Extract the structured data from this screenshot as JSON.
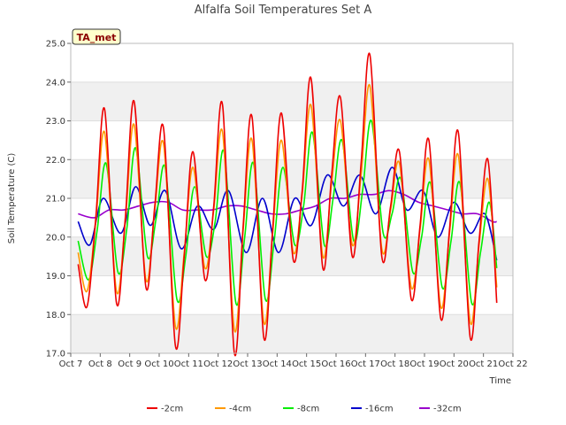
{
  "chart_data": {
    "type": "line",
    "title": "Alfalfa Soil Temperatures Set A",
    "badge": "TA_met",
    "xlabel": "Time",
    "ylabel": "Soil Temperature (C)",
    "ylim": [
      17.0,
      25.0
    ],
    "xlim": [
      7.0,
      22.0
    ],
    "y_ticks": [
      "17.0",
      "18.0",
      "19.0",
      "20.0",
      "21.0",
      "22.0",
      "23.0",
      "24.0",
      "25.0"
    ],
    "x_ticks": [
      "Oct 7",
      "Oct 8",
      "Oct 9",
      "Oct 10",
      "Oct 11",
      "Oct 12",
      "Oct 13",
      "Oct 14",
      "Oct 15",
      "Oct 16",
      "Oct 17",
      "Oct 18",
      "Oct 19",
      "Oct 20",
      "Oct 21",
      "Oct 22"
    ],
    "x_tick_values": [
      7,
      8,
      9,
      10,
      11,
      12,
      13,
      14,
      15,
      16,
      17,
      18,
      19,
      20,
      21,
      22
    ],
    "grid": true,
    "legend_placement": "bottom",
    "series": [
      {
        "name": "-2cm",
        "color": "#ee0000",
        "x": [
          7.25,
          7.55,
          7.85,
          8.15,
          8.55,
          8.85,
          9.15,
          9.55,
          9.85,
          10.15,
          10.55,
          10.85,
          11.15,
          11.55,
          11.85,
          12.15,
          12.55,
          12.85,
          13.15,
          13.55,
          13.85,
          14.15,
          14.55,
          14.85,
          15.15,
          15.55,
          15.85,
          16.15,
          16.55,
          16.85,
          17.15,
          17.55,
          17.85,
          18.15,
          18.55,
          18.85,
          19.15,
          19.55,
          19.85,
          20.15,
          20.55,
          20.85,
          21.15,
          21.45
        ],
        "y": [
          19.3,
          18.2,
          20.5,
          23.3,
          18.3,
          20.5,
          23.5,
          18.7,
          20.8,
          22.8,
          17.2,
          19.5,
          22.2,
          18.9,
          20.8,
          23.4,
          17.0,
          20.3,
          23.1,
          17.4,
          20.2,
          23.2,
          19.4,
          21.2,
          24.1,
          19.2,
          21.6,
          23.6,
          19.5,
          21.9,
          24.7,
          19.5,
          20.8,
          22.2,
          18.4,
          20.3,
          22.5,
          17.9,
          20.2,
          22.7,
          17.4,
          19.9,
          22.0,
          18.3
        ]
      },
      {
        "name": "-4cm",
        "color": "#ff9900",
        "x": [
          7.25,
          7.55,
          7.85,
          8.15,
          8.55,
          8.85,
          9.15,
          9.55,
          9.85,
          10.15,
          10.55,
          10.85,
          11.15,
          11.55,
          11.85,
          12.15,
          12.55,
          12.85,
          13.15,
          13.55,
          13.85,
          14.15,
          14.55,
          14.85,
          15.15,
          15.55,
          15.85,
          16.15,
          16.55,
          16.85,
          17.15,
          17.55,
          17.85,
          18.15,
          18.55,
          18.85,
          19.15,
          19.55,
          19.85,
          20.15,
          20.55,
          20.85,
          21.15,
          21.45
        ],
        "y": [
          19.6,
          18.6,
          20.4,
          22.7,
          18.6,
          20.4,
          22.9,
          18.9,
          20.7,
          22.4,
          17.7,
          19.6,
          21.8,
          19.2,
          20.7,
          22.7,
          17.6,
          20.2,
          22.5,
          17.8,
          20.1,
          22.5,
          19.6,
          21.1,
          23.4,
          19.5,
          21.4,
          23.0,
          19.8,
          21.6,
          23.9,
          19.7,
          20.7,
          21.9,
          18.7,
          20.2,
          22.0,
          18.2,
          20.1,
          22.1,
          17.8,
          19.8,
          21.5,
          18.7
        ]
      },
      {
        "name": "-8cm",
        "color": "#00ee00",
        "x": [
          7.25,
          7.6,
          7.9,
          8.2,
          8.6,
          8.9,
          9.2,
          9.6,
          9.9,
          10.2,
          10.6,
          10.9,
          11.2,
          11.6,
          11.9,
          12.2,
          12.6,
          12.9,
          13.2,
          13.6,
          13.9,
          14.2,
          14.6,
          14.9,
          15.2,
          15.6,
          15.9,
          16.2,
          16.6,
          16.9,
          17.2,
          17.6,
          17.9,
          18.2,
          18.6,
          18.9,
          19.2,
          19.6,
          19.9,
          20.2,
          20.6,
          20.9,
          21.2,
          21.45
        ],
        "y": [
          19.9,
          18.9,
          20.2,
          21.9,
          19.1,
          20.2,
          22.3,
          19.5,
          20.5,
          21.8,
          18.4,
          19.5,
          21.3,
          19.5,
          20.4,
          22.2,
          18.3,
          20.0,
          21.9,
          18.4,
          19.9,
          21.8,
          19.8,
          20.8,
          22.7,
          19.8,
          21.0,
          22.5,
          19.9,
          21.2,
          23.0,
          20.1,
          20.6,
          21.5,
          19.1,
          20.0,
          21.4,
          18.7,
          19.9,
          21.4,
          18.3,
          19.6,
          20.9,
          19.2
        ]
      },
      {
        "name": "-16cm",
        "color": "#0000cc",
        "x": [
          7.25,
          7.65,
          8.1,
          8.7,
          9.2,
          9.7,
          10.2,
          10.75,
          11.3,
          11.85,
          12.35,
          12.95,
          13.5,
          14.05,
          14.6,
          15.15,
          15.7,
          16.25,
          16.8,
          17.35,
          17.9,
          18.4,
          18.95,
          19.45,
          20.0,
          20.55,
          21.05,
          21.45
        ],
        "y": [
          20.4,
          19.8,
          21.0,
          20.1,
          21.3,
          20.3,
          21.2,
          19.7,
          20.8,
          20.2,
          21.2,
          19.6,
          21.0,
          19.6,
          21.0,
          20.3,
          21.6,
          20.8,
          21.6,
          20.6,
          21.8,
          20.7,
          21.2,
          20.0,
          20.9,
          20.1,
          20.6,
          19.4
        ]
      },
      {
        "name": "-32cm",
        "color": "#9900cc",
        "x": [
          7.25,
          7.8,
          8.3,
          8.8,
          9.3,
          9.8,
          10.3,
          10.8,
          11.3,
          11.8,
          12.3,
          12.8,
          13.3,
          13.8,
          14.3,
          14.8,
          15.3,
          15.8,
          16.3,
          16.8,
          17.3,
          17.8,
          18.3,
          18.8,
          19.3,
          19.8,
          20.3,
          20.8,
          21.3,
          21.45
        ],
        "y": [
          20.6,
          20.5,
          20.7,
          20.7,
          20.8,
          20.9,
          20.9,
          20.7,
          20.7,
          20.7,
          20.8,
          20.8,
          20.7,
          20.6,
          20.6,
          20.7,
          20.8,
          21.0,
          21.0,
          21.1,
          21.1,
          21.2,
          21.1,
          20.9,
          20.8,
          20.7,
          20.6,
          20.6,
          20.4,
          20.4
        ]
      }
    ]
  }
}
